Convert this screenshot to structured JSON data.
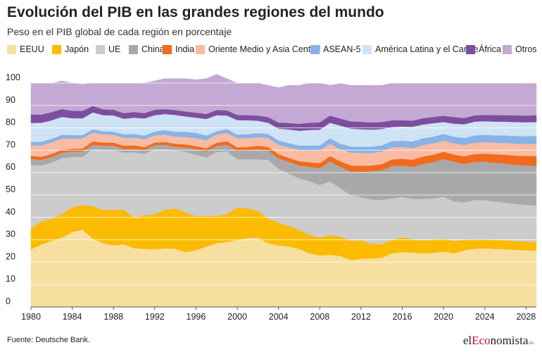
{
  "header": {
    "title": "Evolución del PIB en las grandes regiones del mundo",
    "subtitle": "Peso en el PIB global de cada región en porcentaje"
  },
  "footer": {
    "source": "Fuente: Deutsche Bank.",
    "logo_prefix": "el",
    "logo_accent": "Eco",
    "logo_suffix": "nomista",
    "logo_tld": ".es"
  },
  "chart_data": {
    "type": "area",
    "stacked": true,
    "title": "Evolución del PIB en las grandes regiones del mundo",
    "subtitle": "Peso en el PIB global de cada región en porcentaje",
    "xlim": [
      1980,
      2029
    ],
    "ylim": [
      0,
      100
    ],
    "x_ticks": [
      1980,
      1984,
      1988,
      1992,
      1996,
      2000,
      2004,
      2008,
      2012,
      2016,
      2020,
      2024,
      2028
    ],
    "y_ticks": [
      0,
      10,
      20,
      30,
      40,
      50,
      60,
      70,
      80,
      90,
      100
    ],
    "grid": "horizontal",
    "legend_position": "top",
    "x": [
      1980,
      1981,
      1982,
      1983,
      1984,
      1985,
      1986,
      1987,
      1988,
      1989,
      1990,
      1991,
      1992,
      1993,
      1994,
      1995,
      1996,
      1997,
      1998,
      1999,
      2000,
      2001,
      2002,
      2003,
      2004,
      2005,
      2006,
      2007,
      2008,
      2009,
      2010,
      2011,
      2012,
      2013,
      2014,
      2015,
      2016,
      2017,
      2018,
      2019,
      2020,
      2021,
      2022,
      2023,
      2024,
      2025,
      2026,
      2027,
      2028,
      2029
    ],
    "series": [
      {
        "name": "EEUU",
        "color": "#f7dfa0",
        "values": [
          25.7,
          28,
          29.5,
          31,
          33.5,
          34.5,
          30.5,
          28.5,
          27.5,
          28,
          26.3,
          26,
          25.8,
          26.2,
          26,
          24.5,
          25.3,
          27,
          28.5,
          29,
          30,
          30.8,
          31,
          28.5,
          27.5,
          27,
          26,
          24,
          23,
          23.3,
          22.8,
          21,
          21.5,
          21.7,
          22,
          24,
          24.5,
          24.3,
          24,
          24.2,
          24.7,
          24,
          25.3,
          26,
          26.2,
          25.9,
          25.8,
          25.5,
          25.3,
          25.2
        ]
      },
      {
        "name": "Japón",
        "color": "#fbbb00",
        "values": [
          9.3,
          10.3,
          9.8,
          10.5,
          11,
          11,
          14.5,
          14.8,
          16,
          15.5,
          13.8,
          15,
          15.7,
          17.3,
          18,
          17.8,
          15.2,
          13.8,
          12.2,
          12.5,
          14.5,
          13.2,
          12,
          11,
          10.2,
          9.2,
          8.5,
          8.2,
          8,
          8.8,
          8.7,
          8.5,
          8.3,
          6.5,
          6,
          6,
          6.6,
          6,
          5.7,
          5.9,
          5.7,
          5.5,
          4.7,
          4.2,
          4.1,
          4,
          4,
          3.9,
          3.9,
          3.9
        ]
      },
      {
        "name": "UE",
        "color": "#cccccc",
        "values": [
          28.5,
          25,
          25.2,
          25,
          22.5,
          21.5,
          25.5,
          27,
          26.5,
          25.5,
          29,
          27.5,
          29,
          27,
          26,
          27,
          27.5,
          26,
          28.5,
          28,
          21.5,
          22,
          23,
          26.2,
          24,
          23.4,
          23,
          24,
          23.5,
          24,
          21.5,
          20.5,
          19.2,
          19.8,
          19.8,
          18.5,
          18.1,
          18,
          18.5,
          18.3,
          18.9,
          17.7,
          16.7,
          17.6,
          17.4,
          17.2,
          16.8,
          16.6,
          16.4,
          16.2
        ]
      },
      {
        "name": "China",
        "color": "#a9a9a9",
        "values": [
          2.7,
          2.5,
          2.5,
          2.4,
          2.4,
          2.5,
          2,
          1.8,
          2,
          1.6,
          1.6,
          1.7,
          1.8,
          2,
          1.6,
          2,
          2.5,
          2.7,
          2.8,
          3,
          3.8,
          4,
          4.5,
          4.2,
          4.8,
          5.2,
          5.8,
          6.5,
          7.5,
          9,
          9.5,
          10.5,
          11.5,
          12.7,
          13.3,
          14.5,
          14,
          14.3,
          15.8,
          16.3,
          16.8,
          17.7,
          17.2,
          17,
          17.2,
          17.3,
          17.5,
          17.6,
          17.7,
          17.8
        ]
      },
      {
        "name": "India",
        "color": "#f26a1b",
        "values": [
          1.3,
          1.3,
          1.3,
          1.3,
          1.3,
          1.3,
          1.4,
          1.4,
          1.4,
          1.4,
          1.5,
          1.2,
          1.2,
          1.2,
          1.3,
          1.3,
          1.4,
          1.4,
          1.4,
          1.5,
          1.5,
          1.5,
          1.5,
          1.6,
          1.7,
          1.8,
          1.8,
          2,
          2.2,
          2.3,
          2.6,
          2.7,
          2.6,
          2.5,
          2.7,
          2.9,
          3,
          3.2,
          3.2,
          3.3,
          3.2,
          3.2,
          3.4,
          3.5,
          3.6,
          3.8,
          3.9,
          4,
          4.2,
          4.3
        ]
      },
      {
        "name": "Oriente Medio y Asia Central",
        "color": "#f9bca2",
        "values": [
          4.7,
          5.1,
          5.2,
          5.1,
          4.5,
          4.5,
          4,
          3.6,
          3.5,
          3.6,
          3.5,
          3.5,
          3.1,
          3.3,
          3.2,
          3.3,
          3.5,
          3.7,
          3.6,
          3.8,
          4,
          4,
          3.9,
          4,
          4.3,
          4.7,
          5,
          5.2,
          5.7,
          5.5,
          5.3,
          5.8,
          5.7,
          5.6,
          5.6,
          5.4,
          5.3,
          5.2,
          5.2,
          5.1,
          5,
          5,
          5.1,
          5.1,
          5.2,
          5.2,
          5.3,
          5.4,
          5.4,
          5.5
        ]
      },
      {
        "name": "ASEAN-5",
        "color": "#87b3e6",
        "values": [
          1.5,
          1.6,
          1.6,
          1.6,
          1.6,
          1.5,
          1.5,
          1.4,
          1.4,
          1.5,
          1.6,
          1.7,
          1.8,
          2,
          2.2,
          2.3,
          2.4,
          2,
          1.5,
          1.7,
          1.7,
          1.7,
          1.8,
          1.8,
          1.9,
          1.9,
          2,
          2.2,
          2.3,
          2.4,
          2.6,
          2.7,
          2.8,
          2.8,
          2.8,
          2.8,
          2.8,
          2.9,
          3,
          3,
          3,
          3,
          3.1,
          3.2,
          3.2,
          3.3,
          3.3,
          3.4,
          3.4,
          3.5
        ]
      },
      {
        "name": "América Latina y el Caribe",
        "color": "#cfe3f6",
        "values": [
          8.5,
          8.5,
          8.3,
          8,
          7.5,
          7.5,
          7.5,
          7.2,
          7.3,
          7,
          7.3,
          7.6,
          7.3,
          7.2,
          7.5,
          6.9,
          6.8,
          7.4,
          7.2,
          6,
          6.5,
          6.2,
          5.5,
          5,
          5.3,
          6.1,
          6.6,
          7,
          7,
          7,
          8,
          8,
          7.8,
          7.6,
          7.3,
          6.3,
          6.3,
          6.6,
          6.1,
          6,
          5.3,
          5.8,
          6.1,
          6.2,
          6.1,
          6.1,
          6.2,
          6.2,
          6.2,
          6.2
        ]
      },
      {
        "name": "África",
        "color": "#7d4e9e",
        "values": [
          3.8,
          3.6,
          3.6,
          3.5,
          3.3,
          3.3,
          2.9,
          2.6,
          2.5,
          2.5,
          2.5,
          2.4,
          2.4,
          2.2,
          2.2,
          2.2,
          2.2,
          2.2,
          2.3,
          2.3,
          2.3,
          2.3,
          2.3,
          2.5,
          2.7,
          2.9,
          3.1,
          3.2,
          3.3,
          3.2,
          3.2,
          3.2,
          3.3,
          3.2,
          3.1,
          3,
          2.8,
          2.7,
          2.8,
          2.8,
          2.8,
          2.9,
          2.8,
          2.8,
          2.8,
          2.9,
          2.9,
          3,
          3,
          3
        ]
      },
      {
        "name": "Otros",
        "color": "#c3a9d4",
        "values": [
          14,
          14.1,
          13,
          12.6,
          12.4,
          11.9,
          10.2,
          11.7,
          11.9,
          13.4,
          12.9,
          13.4,
          12.9,
          13.6,
          14,
          14.7,
          14.7,
          15.8,
          15.9,
          14.2,
          14.2,
          14.3,
          14.5,
          14.2,
          15.6,
          16.8,
          17.2,
          17.7,
          17.5,
          13.5,
          15.6,
          16.1,
          16.3,
          16.6,
          16.4,
          16.6,
          16.6,
          16.8,
          15.7,
          15.1,
          14.6,
          15.2,
          15.6,
          14.4,
          14.2,
          14.3,
          14.3,
          14.4,
          14.5,
          14.4
        ]
      }
    ]
  }
}
